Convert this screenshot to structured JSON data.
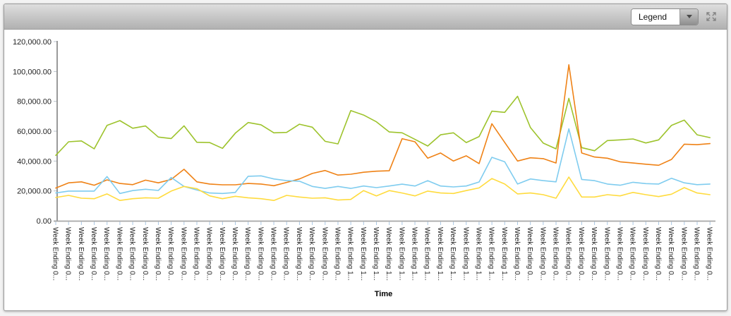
{
  "toolbar": {
    "legend_label": "Legend",
    "icons": {
      "dropdown_arrow": "chevron-down-icon",
      "fullscreen": "expand-arrows-icon"
    }
  },
  "colors": {
    "toolbar_top": "#dedede",
    "toolbar_bottom": "#b1b1b1",
    "axis_line": "#8f8f8f",
    "baseline": "#a6a6a6",
    "x_tick": "#a9c7e4",
    "y_tick": "#b9c2cc",
    "label_text": "#1f1f1f"
  },
  "chart_data": {
    "type": "line",
    "title": "",
    "xlabel": "Time",
    "ylabel": "",
    "ylim": [
      0,
      120000
    ],
    "grid": false,
    "legend_position": "collapsed-dropdown",
    "y_tick_labels": [
      "120,000.00",
      "100,000.00",
      "80,000.00",
      "60,000.00",
      "40,000.00",
      "20,000.00",
      "0.00"
    ],
    "categories": [
      "Week Ending 0...",
      "Week Ending 0...",
      "Week Ending 0...",
      "Week Ending 0...",
      "Week Ending 0...",
      "Week Ending 0...",
      "Week Ending 0...",
      "Week Ending 0...",
      "Week Ending 0...",
      "Week Ending 0...",
      "Week Ending 0...",
      "Week Ending 0...",
      "Week Ending 0...",
      "Week Ending 0...",
      "Week Ending 0...",
      "Week Ending 0...",
      "Week Ending 0...",
      "Week Ending 0...",
      "Week Ending 0...",
      "Week Ending 0...",
      "Week Ending 0...",
      "Week Ending 0...",
      "Week Ending 0...",
      "Week Ending 1...",
      "Week Ending 1...",
      "Week Ending 1...",
      "Week Ending 1...",
      "Week Ending 1...",
      "Week Ending 1...",
      "Week Ending 1...",
      "Week Ending 1...",
      "Week Ending 1...",
      "Week Ending 1...",
      "Week Ending 1...",
      "Week Ending 1...",
      "Week Ending 1...",
      "Week Ending 0...",
      "Week Ending 0...",
      "Week Ending 0...",
      "Week Ending 0...",
      "Week Ending 0...",
      "Week Ending 0...",
      "Week Ending 0...",
      "Week Ending 0...",
      "Week Ending 0...",
      "Week Ending 0...",
      "Week Ending 0...",
      "Week Ending 0...",
      "Week Ending 0...",
      "Week Ending 0...",
      "Week Ending 0...",
      "Week Ending 0..."
    ],
    "series": [
      {
        "name": "green",
        "color": "#9DC32C",
        "values": [
          43800,
          52900,
          53500,
          48200,
          63900,
          67100,
          62000,
          63500,
          56100,
          55100,
          63600,
          52600,
          52400,
          48500,
          58700,
          65800,
          64300,
          58900,
          59200,
          64700,
          62700,
          53200,
          51500,
          73800,
          70800,
          66300,
          59500,
          58900,
          54500,
          50100,
          57600,
          58900,
          52400,
          56400,
          73400,
          72600,
          83400,
          62500,
          52000,
          48200,
          82000,
          49000,
          46900,
          53700,
          54200,
          54800,
          52100,
          54200,
          63900,
          67400,
          57600,
          55700
        ]
      },
      {
        "name": "orange",
        "color": "#EF8216",
        "values": [
          21900,
          25400,
          26100,
          23800,
          27400,
          25000,
          24200,
          27200,
          25400,
          27700,
          34500,
          26100,
          24600,
          24100,
          24100,
          25000,
          24600,
          23500,
          25700,
          28000,
          31700,
          33700,
          30600,
          31200,
          32500,
          33200,
          33500,
          55000,
          52900,
          41900,
          45400,
          40000,
          43500,
          38300,
          65000,
          52500,
          40000,
          42200,
          41600,
          38700,
          104500,
          45400,
          42700,
          41900,
          39500,
          38700,
          37900,
          37200,
          41100,
          51300,
          51000,
          51700
        ]
      },
      {
        "name": "blue",
        "color": "#7FCCEF",
        "values": [
          18600,
          19900,
          19900,
          19900,
          29600,
          18300,
          20200,
          21100,
          20300,
          29000,
          23000,
          20600,
          18600,
          18300,
          19000,
          29800,
          30100,
          28000,
          26900,
          26500,
          23000,
          21700,
          23000,
          21700,
          23300,
          22200,
          23300,
          24500,
          23300,
          26900,
          23300,
          22700,
          23300,
          26000,
          42500,
          39500,
          24600,
          28000,
          26900,
          26100,
          61600,
          27700,
          26900,
          24600,
          23800,
          25800,
          24900,
          24600,
          28500,
          25400,
          24200,
          24600
        ]
      },
      {
        "name": "yellow",
        "color": "#FFDB3E",
        "values": [
          15600,
          17000,
          15100,
          14800,
          18000,
          13600,
          14800,
          15400,
          15100,
          19900,
          23000,
          21500,
          16700,
          14800,
          16400,
          15400,
          14800,
          13600,
          17000,
          15900,
          15100,
          15400,
          13900,
          14300,
          20200,
          16700,
          20200,
          18600,
          16700,
          19900,
          18600,
          18300,
          20200,
          22000,
          28300,
          24600,
          18000,
          18600,
          17500,
          15100,
          29300,
          15900,
          15900,
          17500,
          16700,
          19000,
          17500,
          16200,
          17800,
          22200,
          18600,
          17500
        ]
      }
    ]
  }
}
